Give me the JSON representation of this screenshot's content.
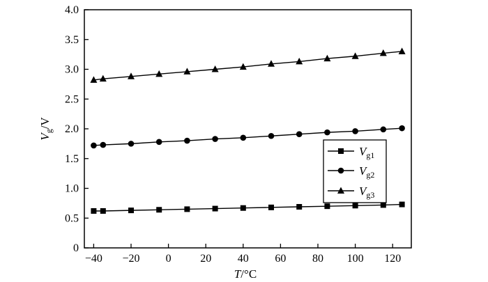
{
  "chart_data": {
    "type": "line",
    "xlabel": {
      "var": "T",
      "unit": "/°C"
    },
    "ylabel": {
      "var": "V",
      "sub": "g",
      "unit": "/V"
    },
    "xlim": [
      -45,
      130
    ],
    "ylim": [
      0,
      4.0
    ],
    "xticks": [
      -40,
      -20,
      0,
      20,
      40,
      60,
      80,
      100,
      120
    ],
    "xtick_labels": [
      "−40",
      "−20",
      "0",
      "20",
      "40",
      "60",
      "80",
      "100",
      "120"
    ],
    "yticks": [
      0,
      0.5,
      1.0,
      1.5,
      2.0,
      2.5,
      3.0,
      3.5,
      4.0
    ],
    "ytick_labels": [
      "0",
      "0.5",
      "1.0",
      "1.5",
      "2.0",
      "2.5",
      "3.0",
      "3.5",
      "4.0"
    ],
    "grid": false,
    "legend_position": "right",
    "x": [
      -40,
      -35,
      -20,
      -5,
      10,
      25,
      40,
      55,
      70,
      85,
      100,
      115,
      125
    ],
    "series": [
      {
        "name": {
          "base": "V",
          "sub": "g1"
        },
        "marker": "square",
        "values": [
          0.62,
          0.62,
          0.63,
          0.64,
          0.65,
          0.66,
          0.67,
          0.68,
          0.69,
          0.7,
          0.71,
          0.72,
          0.73
        ]
      },
      {
        "name": {
          "base": "V",
          "sub": "g2"
        },
        "marker": "circle",
        "values": [
          1.72,
          1.73,
          1.75,
          1.78,
          1.8,
          1.83,
          1.85,
          1.88,
          1.91,
          1.94,
          1.96,
          1.99,
          2.01
        ]
      },
      {
        "name": {
          "base": "V",
          "sub": "g3"
        },
        "marker": "triangle",
        "values": [
          2.82,
          2.84,
          2.88,
          2.92,
          2.96,
          3.0,
          3.04,
          3.09,
          3.13,
          3.18,
          3.22,
          3.27,
          3.3
        ]
      }
    ]
  }
}
